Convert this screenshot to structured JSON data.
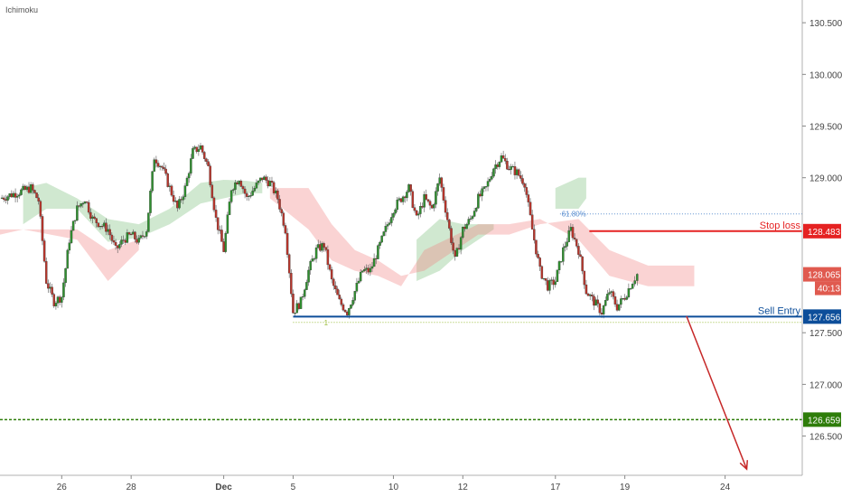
{
  "indicator_label": "Ichimoku",
  "chart_data": {
    "type": "candlestick",
    "y_range": [
      126.12,
      130.72
    ],
    "x_range": [
      0,
      52
    ],
    "y_ticks": [
      "130.500",
      "130.000",
      "129.500",
      "129.000",
      "127.500",
      "127.000",
      "126.500"
    ],
    "x_ticks": [
      {
        "label": "26",
        "x": 4
      },
      {
        "label": "28",
        "x": 8.5
      },
      {
        "label": "Dec",
        "x": 14.5
      },
      {
        "label": "5",
        "x": 19
      },
      {
        "label": "10",
        "x": 25.5
      },
      {
        "label": "12",
        "x": 30
      },
      {
        "label": "17",
        "x": 36
      },
      {
        "label": "19",
        "x": 40.5
      },
      {
        "label": "24",
        "x": 47
      }
    ],
    "levels": {
      "stop_loss": {
        "label": "Stop loss",
        "value": "128.483",
        "price": 128.483,
        "color": "#e52222"
      },
      "sell_entry": {
        "label": "Sell Entry",
        "value": "127.656",
        "price": 127.656,
        "color": "#0d4e9a"
      },
      "target": {
        "value": "126.659",
        "price": 126.659,
        "color": "#2e7d0a"
      },
      "current": {
        "value": "128.065",
        "price": 128.065,
        "countdown": "40:13",
        "color": "#e05a4f"
      },
      "fib_618": {
        "label": "61.80%",
        "price": 128.65,
        "color": "#5b8fd0"
      },
      "fib_1": {
        "label": "1",
        "price": 127.6,
        "color": "#9bbd3a"
      }
    },
    "close_path": [
      [
        0,
        128.8
      ],
      [
        1,
        128.85
      ],
      [
        2,
        128.9
      ],
      [
        2.5,
        128.78
      ],
      [
        3,
        128.0
      ],
      [
        3.5,
        127.8
      ],
      [
        4,
        127.85
      ],
      [
        4.5,
        128.4
      ],
      [
        5,
        128.7
      ],
      [
        5.5,
        128.8
      ],
      [
        6,
        128.6
      ],
      [
        6.5,
        128.55
      ],
      [
        7,
        128.5
      ],
      [
        7.5,
        128.3
      ],
      [
        8,
        128.4
      ],
      [
        8.5,
        128.45
      ],
      [
        9,
        128.38
      ],
      [
        9.5,
        128.5
      ],
      [
        10,
        129.2
      ],
      [
        10.5,
        129.1
      ],
      [
        11,
        128.9
      ],
      [
        11.5,
        128.7
      ],
      [
        12,
        128.9
      ],
      [
        12.5,
        129.25
      ],
      [
        13,
        129.3
      ],
      [
        13.5,
        129.1
      ],
      [
        14,
        128.6
      ],
      [
        14.5,
        128.3
      ],
      [
        15,
        128.9
      ],
      [
        15.5,
        129.0
      ],
      [
        16,
        128.8
      ],
      [
        16.5,
        128.9
      ],
      [
        17,
        129.0
      ],
      [
        17.5,
        128.95
      ],
      [
        18,
        128.8
      ],
      [
        18.5,
        128.5
      ],
      [
        19,
        127.7
      ],
      [
        19.5,
        127.8
      ],
      [
        20,
        128.1
      ],
      [
        20.5,
        128.3
      ],
      [
        21,
        128.35
      ],
      [
        21.5,
        128.0
      ],
      [
        22,
        127.8
      ],
      [
        22.5,
        127.7
      ],
      [
        23,
        127.9
      ],
      [
        23.5,
        128.1
      ],
      [
        24,
        128.1
      ],
      [
        24.5,
        128.3
      ],
      [
        25,
        128.5
      ],
      [
        25.5,
        128.7
      ],
      [
        26,
        128.8
      ],
      [
        26.5,
        128.9
      ],
      [
        27,
        128.6
      ],
      [
        27.5,
        128.8
      ],
      [
        28,
        128.7
      ],
      [
        28.5,
        129.0
      ],
      [
        29,
        128.6
      ],
      [
        29.5,
        128.2
      ],
      [
        30,
        128.5
      ],
      [
        30.5,
        128.6
      ],
      [
        31,
        128.8
      ],
      [
        31.5,
        128.9
      ],
      [
        32,
        129.1
      ],
      [
        32.5,
        129.2
      ],
      [
        33,
        129.1
      ],
      [
        33.5,
        129.05
      ],
      [
        34,
        128.95
      ],
      [
        34.5,
        128.5
      ],
      [
        35,
        128.1
      ],
      [
        35.5,
        127.95
      ],
      [
        36,
        128.0
      ],
      [
        36.5,
        128.3
      ],
      [
        37,
        128.5
      ],
      [
        37.5,
        128.3
      ],
      [
        38,
        127.9
      ],
      [
        38.5,
        127.8
      ],
      [
        39,
        127.7
      ],
      [
        39.5,
        127.9
      ],
      [
        40,
        127.75
      ],
      [
        40.5,
        127.85
      ],
      [
        41,
        128.0
      ],
      [
        41.3,
        128.065
      ]
    ],
    "kumo_bull": [
      [
        1.5,
        128.9,
        128.55
      ],
      [
        3,
        128.95,
        128.7
      ],
      [
        5,
        128.8,
        128.7
      ],
      [
        7,
        128.6,
        128.38
      ],
      [
        9,
        128.55,
        128.42
      ],
      [
        11,
        128.7,
        128.55
      ],
      [
        13,
        128.95,
        128.75
      ],
      [
        14.5,
        128.98,
        128.8
      ],
      [
        16,
        128.97,
        128.85
      ],
      [
        17,
        128.95,
        128.85
      ],
      [
        27,
        128.4,
        128.0
      ],
      [
        28.5,
        128.6,
        128.1
      ],
      [
        30,
        128.55,
        128.3
      ],
      [
        32,
        128.55,
        128.5
      ],
      [
        36,
        128.9,
        128.7
      ],
      [
        37.5,
        129.0,
        128.7
      ],
      [
        38,
        129.0,
        128.8
      ]
    ],
    "kumo_bear": [
      [
        0,
        128.45,
        128.5
      ],
      [
        1.5,
        128.5,
        128.5
      ],
      [
        5,
        128.5,
        128.4
      ],
      [
        7,
        128.3,
        128.0
      ],
      [
        9,
        128.4,
        128.3
      ],
      [
        17.5,
        128.9,
        128.8
      ],
      [
        20,
        128.9,
        128.5
      ],
      [
        21.5,
        128.55,
        128.2
      ],
      [
        23,
        128.3,
        128.1
      ],
      [
        24.5,
        128.2,
        128.05
      ],
      [
        26,
        128.05,
        127.95
      ],
      [
        27.5,
        128.1,
        128.3
      ],
      [
        31,
        128.45,
        128.55
      ],
      [
        33,
        128.45,
        128.55
      ],
      [
        35,
        128.55,
        128.6
      ],
      [
        37.5,
        128.6,
        128.4
      ],
      [
        39.5,
        128.3,
        128.05
      ],
      [
        42,
        128.15,
        127.95
      ],
      [
        44,
        128.15,
        127.95
      ],
      [
        45,
        128.15,
        127.95
      ]
    ],
    "arrow": {
      "from": [
        44.5,
        127.66
      ],
      "to": [
        48.4,
        126.18
      ]
    }
  }
}
